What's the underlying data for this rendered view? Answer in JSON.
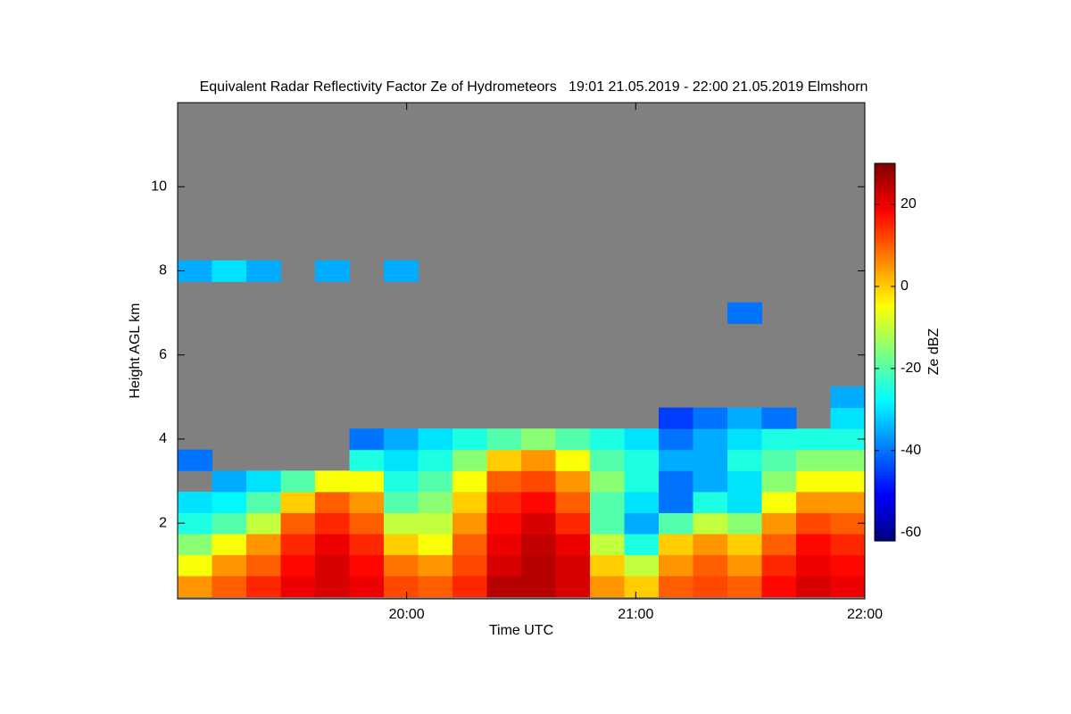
{
  "chart_data": {
    "type": "heatmap",
    "title": "Equivalent Radar Reflectivity Factor Ze of Hydrometeors   19:01 21.05.2019 - 22:00 21.05.2019 Elmshorn",
    "xlabel": "Time UTC",
    "ylabel": "Height AGL km",
    "colorbar_label": "Ze dBZ",
    "colormap": "jet",
    "background": "#808080",
    "xlim": [
      19,
      22
    ],
    "xticks": [
      {
        "value": 20,
        "label": "20:00"
      },
      {
        "value": 21,
        "label": "21:00"
      },
      {
        "value": 22,
        "label": "22:00"
      }
    ],
    "ylim": [
      0.2,
      12
    ],
    "yticks": [
      2,
      4,
      6,
      8,
      10
    ],
    "clim": [
      -62,
      30
    ],
    "colorbar_ticks": [
      -60,
      -40,
      -20,
      0,
      20
    ],
    "x": [
      19.075,
      19.225,
      19.375,
      19.525,
      19.675,
      19.825,
      19.975,
      20.125,
      20.275,
      20.425,
      20.575,
      20.725,
      20.875,
      21.025,
      21.175,
      21.325,
      21.475,
      21.625,
      21.775,
      21.925
    ],
    "y": [
      0.5,
      1.0,
      1.5,
      2.0,
      2.5,
      3.0,
      3.5,
      4.0,
      4.5,
      5.0,
      5.5,
      6.0,
      6.5,
      7.0,
      7.5,
      8.0
    ],
    "z": [
      [
        5,
        10,
        15,
        20,
        22,
        20,
        12,
        10,
        15,
        25,
        25,
        22,
        5,
        0,
        10,
        12,
        10,
        18,
        22,
        20
      ],
      [
        -5,
        5,
        10,
        18,
        22,
        18,
        8,
        5,
        12,
        22,
        25,
        22,
        0,
        -10,
        5,
        10,
        5,
        15,
        20,
        18
      ],
      [
        -15,
        -5,
        5,
        15,
        20,
        15,
        0,
        -5,
        10,
        20,
        24,
        20,
        -10,
        -25,
        0,
        5,
        0,
        10,
        18,
        15
      ],
      [
        -25,
        -20,
        -10,
        10,
        15,
        10,
        -10,
        -10,
        5,
        18,
        22,
        15,
        -20,
        -35,
        -20,
        -10,
        -15,
        5,
        12,
        10
      ],
      [
        -30,
        -28,
        -20,
        0,
        10,
        5,
        -20,
        -15,
        0,
        15,
        18,
        10,
        -20,
        -30,
        -40,
        -25,
        -30,
        -5,
        5,
        5
      ],
      [
        null,
        -35,
        -30,
        -20,
        -5,
        -5,
        -25,
        -20,
        -5,
        10,
        12,
        5,
        -15,
        -25,
        -40,
        -35,
        -30,
        -15,
        -5,
        -5
      ],
      [
        -40,
        null,
        null,
        null,
        null,
        -25,
        -30,
        -25,
        -15,
        0,
        5,
        -5,
        -20,
        -25,
        -35,
        -35,
        -25,
        -20,
        -15,
        -15
      ],
      [
        null,
        null,
        null,
        null,
        null,
        -40,
        -35,
        -30,
        -25,
        -20,
        -15,
        -20,
        -25,
        -30,
        -40,
        -35,
        -30,
        -25,
        -25,
        -25
      ],
      [
        null,
        null,
        null,
        null,
        null,
        null,
        null,
        null,
        null,
        null,
        null,
        null,
        null,
        null,
        -45,
        -40,
        -35,
        -40,
        null,
        -30
      ],
      [
        null,
        null,
        null,
        null,
        null,
        null,
        null,
        null,
        null,
        null,
        null,
        null,
        null,
        null,
        null,
        null,
        null,
        null,
        null,
        -35
      ],
      [
        null,
        null,
        null,
        null,
        null,
        null,
        null,
        null,
        null,
        null,
        null,
        null,
        null,
        null,
        null,
        null,
        null,
        null,
        null,
        null
      ],
      [
        null,
        null,
        null,
        null,
        null,
        null,
        null,
        null,
        null,
        null,
        null,
        null,
        null,
        null,
        null,
        null,
        null,
        null,
        null,
        null
      ],
      [
        null,
        null,
        null,
        null,
        null,
        null,
        null,
        null,
        null,
        null,
        null,
        null,
        null,
        null,
        null,
        null,
        null,
        null,
        null,
        null
      ],
      [
        null,
        null,
        null,
        null,
        null,
        null,
        null,
        null,
        null,
        null,
        null,
        null,
        null,
        null,
        null,
        null,
        -40,
        null,
        null,
        null
      ],
      [
        null,
        null,
        null,
        null,
        null,
        null,
        null,
        null,
        null,
        null,
        null,
        null,
        null,
        null,
        null,
        null,
        null,
        null,
        null,
        null
      ],
      [
        -35,
        -30,
        -35,
        null,
        -35,
        null,
        -35,
        null,
        null,
        null,
        null,
        null,
        null,
        null,
        null,
        null,
        null,
        null,
        null,
        null
      ]
    ]
  }
}
